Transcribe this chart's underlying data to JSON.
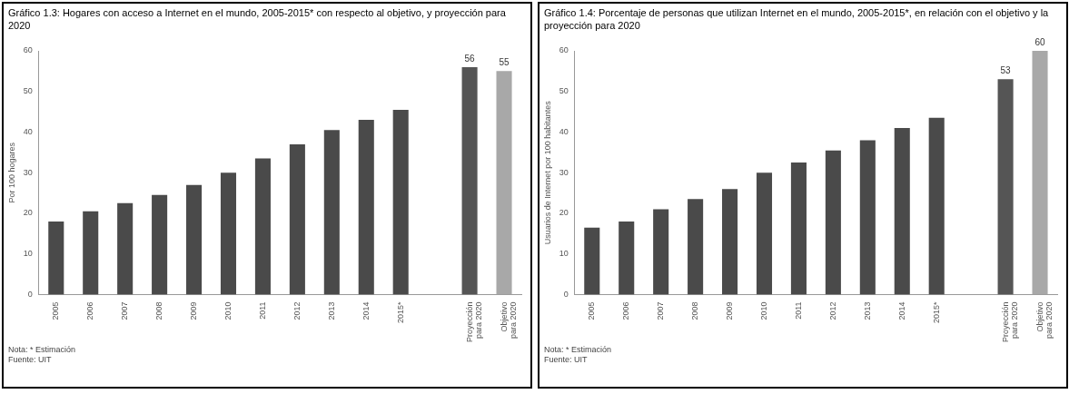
{
  "chart_data": [
    {
      "type": "bar",
      "title": "Gráfico 1.3: Hogares con acceso a Internet en el mundo, 2005-2015* con respecto al objetivo, y proyección para 2020",
      "ylabel": "Por 100 hogares",
      "categories": [
        "2005",
        "2006",
        "2007",
        "2008",
        "2009",
        "2010",
        "2011",
        "2012",
        "2013",
        "2014",
        "2015*",
        null,
        "Proyección para 2020",
        "Objetivo para 2020"
      ],
      "values": [
        18,
        20.5,
        22.5,
        24.5,
        27,
        30,
        33.5,
        37,
        40.5,
        43,
        45.5,
        null,
        56,
        55
      ],
      "colors": [
        "#4a4a4a",
        "#4a4a4a",
        "#4a4a4a",
        "#4a4a4a",
        "#4a4a4a",
        "#4a4a4a",
        "#4a4a4a",
        "#4a4a4a",
        "#4a4a4a",
        "#4a4a4a",
        "#4a4a4a",
        "#4a4a4a",
        "#555555",
        "#a8a8a8"
      ],
      "value_labels": [
        null,
        null,
        null,
        null,
        null,
        null,
        null,
        null,
        null,
        null,
        null,
        null,
        "56",
        "55"
      ],
      "ylim": [
        0,
        60
      ],
      "yticks": [
        0,
        10,
        20,
        30,
        40,
        50,
        60
      ],
      "grid": false,
      "legend": false,
      "annotations": [
        "Nota: * Estimación",
        "Fuente: UIT"
      ]
    },
    {
      "type": "bar",
      "title": "Gráfico 1.4: Porcentaje de personas que utilizan Internet en el mundo, 2005-2015*, en relación con el objetivo y la proyección para 2020",
      "ylabel": "Usuarios de Internet por 100 habitantes",
      "categories": [
        "2005",
        "2006",
        "2007",
        "2008",
        "2009",
        "2010",
        "2011",
        "2012",
        "2013",
        "2014",
        "2015*",
        null,
        "Proyección para 2020",
        "Objetivo para 2020"
      ],
      "values": [
        16.5,
        18,
        21,
        23.5,
        26,
        30,
        32.5,
        35.5,
        38,
        41,
        43.5,
        null,
        53,
        60
      ],
      "colors": [
        "#4a4a4a",
        "#4a4a4a",
        "#4a4a4a",
        "#4a4a4a",
        "#4a4a4a",
        "#4a4a4a",
        "#4a4a4a",
        "#4a4a4a",
        "#4a4a4a",
        "#4a4a4a",
        "#4a4a4a",
        "#4a4a4a",
        "#555555",
        "#a8a8a8"
      ],
      "value_labels": [
        null,
        null,
        null,
        null,
        null,
        null,
        null,
        null,
        null,
        null,
        null,
        null,
        "53",
        "60"
      ],
      "ylim": [
        0,
        60
      ],
      "yticks": [
        0,
        10,
        20,
        30,
        40,
        50,
        60
      ],
      "grid": false,
      "legend": false,
      "annotations": [
        "Nota: * Estimación",
        "Fuente: UIT"
      ]
    }
  ]
}
